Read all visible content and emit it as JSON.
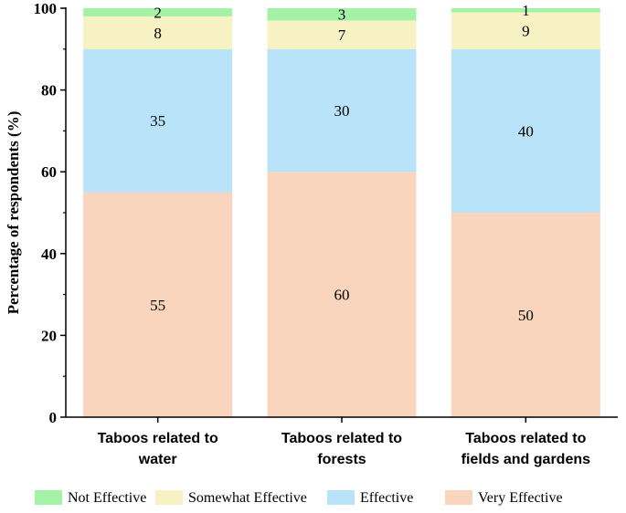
{
  "chart_data": {
    "type": "bar",
    "stacked": true,
    "categories": [
      [
        "Taboos related to",
        "water"
      ],
      [
        "Taboos related to",
        "forests"
      ],
      [
        "Taboos related to",
        "fields and gardens"
      ]
    ],
    "series": [
      {
        "name": "Very Effective",
        "values": [
          55,
          60,
          50
        ],
        "color": "#f8d5bc"
      },
      {
        "name": "Effective",
        "values": [
          35,
          30,
          40
        ],
        "color": "#b9e3f9"
      },
      {
        "name": "Somewhat Effective",
        "values": [
          8,
          7,
          9
        ],
        "color": "#f6f2c4"
      },
      {
        "name": "Not Effective",
        "values": [
          2,
          3,
          1
        ],
        "color": "#a3f2a6"
      }
    ],
    "legend_order": [
      "Not Effective",
      "Somewhat Effective",
      "Effective",
      "Very Effective"
    ],
    "xlabel": "",
    "ylabel": "Percentage of respondents (%)",
    "ylim": [
      0,
      100
    ],
    "yticks": [
      0,
      20,
      40,
      60,
      80,
      100
    ],
    "grid": false,
    "legend_position": "bottom"
  }
}
